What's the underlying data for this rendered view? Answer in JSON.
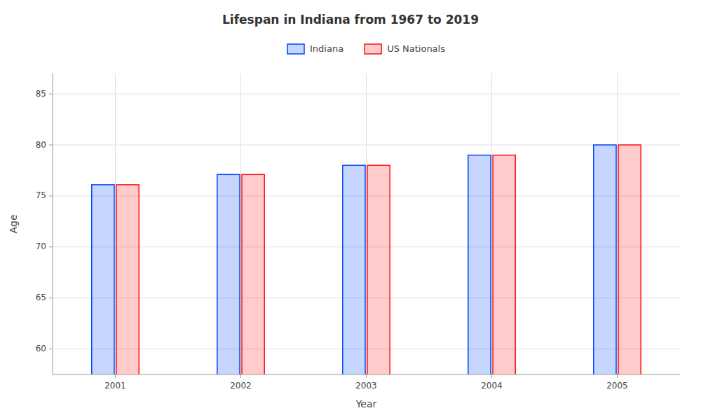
{
  "chart_data": {
    "type": "bar",
    "title": "Lifespan in Indiana from 1967 to 2019",
    "xlabel": "Year",
    "ylabel": "Age",
    "categories": [
      "2001",
      "2002",
      "2003",
      "2004",
      "2005"
    ],
    "series": [
      {
        "name": "Indiana",
        "color": "#0044ff",
        "values": [
          76.1,
          77.1,
          78.0,
          79.0,
          80.0
        ]
      },
      {
        "name": "US Nationals",
        "color": "#ff1111",
        "values": [
          76.1,
          77.1,
          78.0,
          79.0,
          80.0
        ]
      }
    ],
    "ylim": [
      57.5,
      87
    ],
    "yticks": [
      60,
      65,
      70,
      75,
      80,
      85
    ],
    "grid": true,
    "legend": "top"
  }
}
